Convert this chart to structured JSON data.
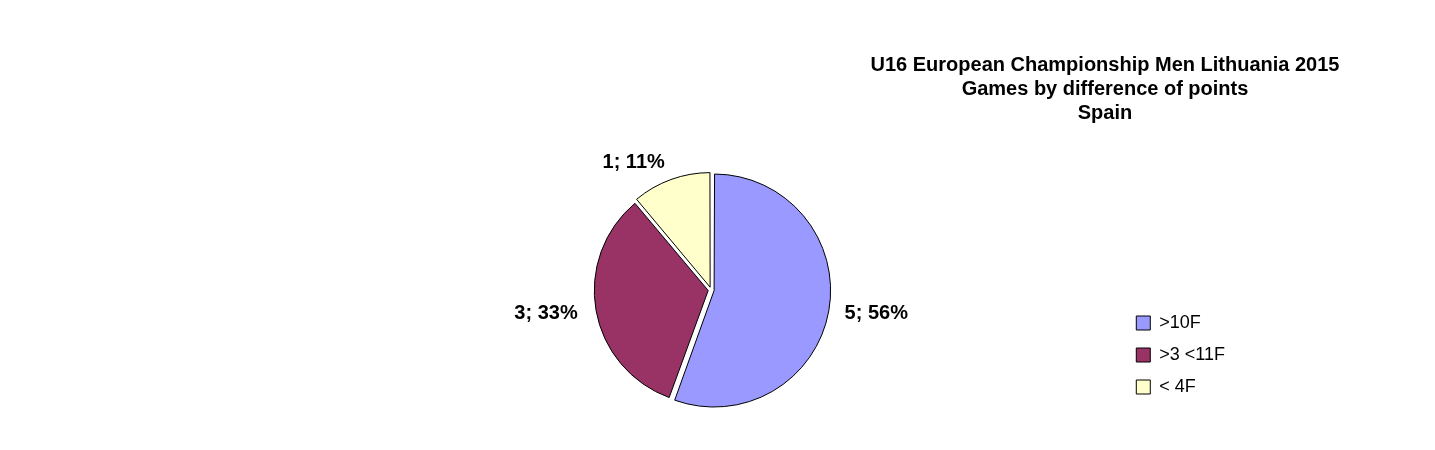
{
  "chart_data": {
    "type": "pie",
    "title": "U16 European Championship Men Lithuania 2015\nGames by difference of points\nSpain",
    "categories": [
      ">10F",
      ">3 <11F",
      "< 4F"
    ],
    "values": [
      5,
      3,
      1
    ],
    "colors": [
      "#9999ff",
      "#993366",
      "#ffffcc"
    ],
    "value_labels": [
      "5; 56%",
      "3; 33%",
      "1; 11%"
    ],
    "legend": "bottom right"
  }
}
